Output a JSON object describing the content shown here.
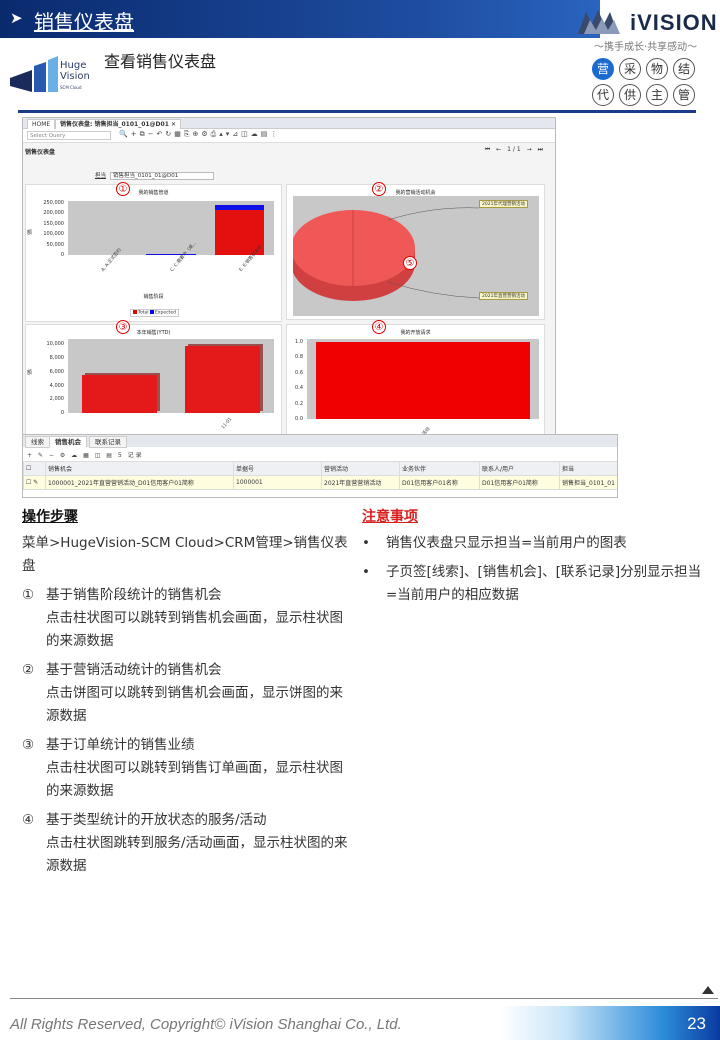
{
  "header": {
    "arrow": "➤",
    "title": "销售仪表盘",
    "subtitle": "查看销售仪表盘"
  },
  "brand": {
    "name": "iVISION",
    "slogan": "～携手成长·共享感动～",
    "hv_line1": "Huge",
    "hv_line2": "Vision",
    "hv_line3": "SCM Cloud"
  },
  "tags": [
    "营",
    "采",
    "物",
    "结",
    "代",
    "供",
    "主",
    "管"
  ],
  "screenshot": {
    "tab_home": "HOME",
    "tab_active": "销售仪表盘: 销售担当_0101_01@D01",
    "tab_close": "✕",
    "select_query": "Select Query",
    "page_title": "销售仪表盘",
    "pager": "1/1",
    "filter_label": "担当",
    "filter_value": "销售担当_0101_01@D01",
    "chart1": {
      "num": "①",
      "title": "我的销售管道",
      "ylabel": "额",
      "xlabel": "销售阶段",
      "legend_total": "Total",
      "legend_expected": "Expected"
    },
    "chart2": {
      "num": "②",
      "title": "我的营销活动机会",
      "callout1": "2021年代理营销活动",
      "callout2": "2021年直营营销活动",
      "center_num": "⑤"
    },
    "chart3": {
      "num": "③",
      "title": "本年销售(YTD)",
      "ylabel": "额"
    },
    "chart4": {
      "num": "④",
      "title": "我的开放请求"
    }
  },
  "chart_data": [
    {
      "type": "bar",
      "title": "我的销售管道",
      "xlabel": "销售阶段",
      "ylabel": "额",
      "categories": [
        "A. A:正式签约",
        "C. C:需要中（成...",
        "E. E:销售机会中"
      ],
      "series": [
        {
          "name": "Total",
          "values": [
            0,
            2000,
            215000
          ]
        },
        {
          "name": "Expected",
          "values": [
            0,
            1000,
            25000
          ]
        }
      ],
      "yticks": [
        "0",
        "50,000",
        "100,000",
        "150,000",
        "200,000",
        "250,000"
      ],
      "ylim": [
        0,
        260000
      ]
    },
    {
      "type": "pie",
      "title": "我的营销活动机会",
      "labels": [
        "2021年代理营销活动",
        "2021年直营营销活动"
      ],
      "values": [
        1,
        1
      ]
    },
    {
      "type": "bar",
      "title": "本年销售(YTD)",
      "ylabel": "额",
      "categories": [
        "",
        "11-01"
      ],
      "values": [
        5500,
        9800
      ],
      "yticks": [
        "0",
        "2,000",
        "4,000",
        "6,000",
        "8,000",
        "10,000"
      ],
      "ylim": [
        0,
        10800
      ]
    },
    {
      "type": "bar",
      "title": "我的开放请求",
      "categories": [
        "活动"
      ],
      "values": [
        1.0
      ],
      "yticks": [
        "0.0",
        "0.2",
        "0.4",
        "0.6",
        "0.8",
        "1.0"
      ],
      "ylim": [
        0,
        1.04
      ]
    }
  ],
  "grid": {
    "tabs": [
      "线索",
      "销售机会",
      "联系记录"
    ],
    "record_count": "5 记录",
    "columns": [
      "销售机会",
      "单据号",
      "营销活动",
      "业务伙伴",
      "联系人/用户",
      "担当"
    ],
    "row": [
      "1000001_2021年直营营销活动_D01信用客户01简称",
      "1000001",
      "2021年直营营销活动",
      "D01信用客户01名称",
      "D01信用客户01简称",
      "销售担当_0101_01"
    ]
  },
  "steps_section": {
    "heading": "操作步骤",
    "menu": "菜单>HugeVision-SCM Cloud>CRM管理>销售仪表盘",
    "steps": [
      {
        "num": "①",
        "title": "基于销售阶段统计的销售机会",
        "desc": "点击柱状图可以跳转到销售机会画面，显示柱状图的来源数据"
      },
      {
        "num": "②",
        "title": "基于营销活动统计的销售机会",
        "desc": "点击饼图可以跳转到销售机会画面，显示饼图的来源数据"
      },
      {
        "num": "③",
        "title": "基于订单统计的销售业绩",
        "desc": "点击柱状图可以跳转到销售订单画面，显示柱状图的来源数据"
      },
      {
        "num": "④",
        "title": "基于类型统计的开放状态的服务/活动",
        "desc": "点击柱状图跳转到服务/活动画面，显示柱状图的来源数据"
      }
    ]
  },
  "notes_section": {
    "heading": "注意事项",
    "bullet": "•",
    "items": [
      "销售仪表盘只显示担当=当前用户的图表",
      "子页签[线索]、[销售机会]、[联系记录]分别显示担当=当前用户的相应数据"
    ]
  },
  "footer": {
    "copyright": "All Rights Reserved, Copyright© iVision Shanghai Co., Ltd.",
    "page": "23"
  }
}
